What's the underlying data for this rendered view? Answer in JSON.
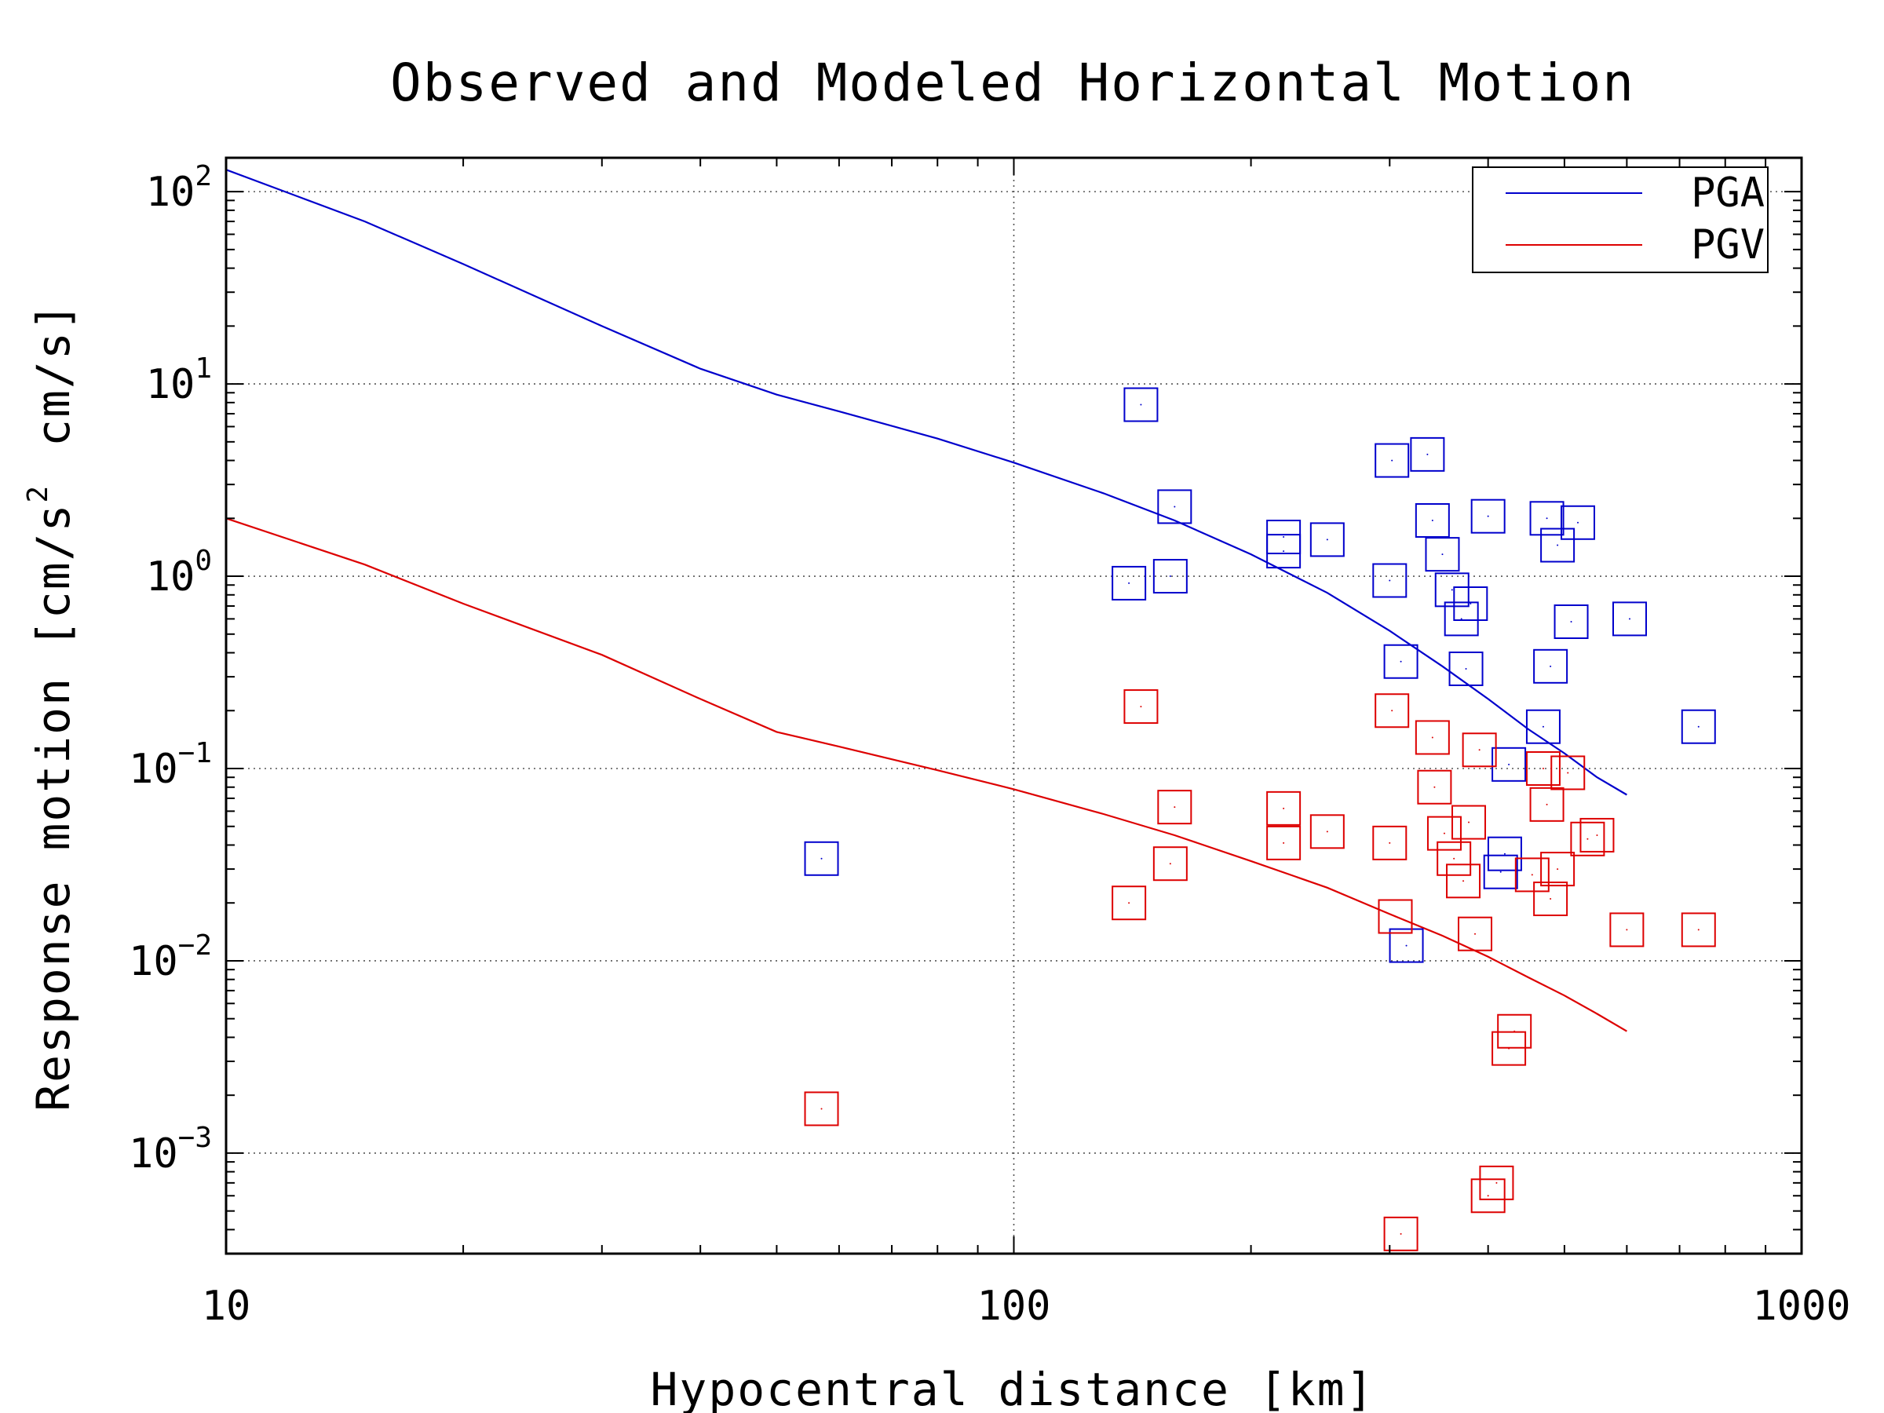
{
  "chart_data": {
    "type": "scatter",
    "title": "Observed and Modeled Horizontal Motion",
    "xlabel": "Hypocentral distance [km]",
    "ylabel": "Response motion [cm/s",
    "ylabel_sup": "2",
    "ylabel_tail": "cm/s]",
    "xscale": "log",
    "yscale": "log",
    "xlim": [
      10,
      1000
    ],
    "ylim": [
      0.0003,
      150
    ],
    "grid": true,
    "legend_position": "top-right",
    "x_ticks": [
      {
        "value": 10,
        "label": "10"
      },
      {
        "value": 100,
        "label": "100"
      },
      {
        "value": 1000,
        "label": "1000"
      }
    ],
    "y_ticks": [
      {
        "value": 100,
        "base": "10",
        "exp": "2"
      },
      {
        "value": 10,
        "base": "10",
        "exp": "1"
      },
      {
        "value": 1,
        "base": "10",
        "exp": "0"
      },
      {
        "value": 0.1,
        "base": "10",
        "exp": "−1"
      },
      {
        "value": 0.01,
        "base": "10",
        "exp": "−2"
      },
      {
        "value": 0.001,
        "base": "10",
        "exp": "−3"
      }
    ],
    "series": [
      {
        "name": "PGA",
        "kind": "line",
        "color": "#0000cc",
        "x": [
          10,
          15,
          20,
          30,
          40,
          50,
          60,
          80,
          100,
          130,
          160,
          200,
          250,
          300,
          350,
          400,
          450,
          500,
          550,
          600
        ],
        "y": [
          130,
          70,
          42,
          20,
          12,
          8.8,
          7.2,
          5.2,
          3.9,
          2.7,
          1.95,
          1.3,
          0.82,
          0.52,
          0.34,
          0.23,
          0.16,
          0.12,
          0.09,
          0.073
        ]
      },
      {
        "name": "PGV",
        "kind": "line",
        "color": "#dd0000",
        "x": [
          10,
          15,
          20,
          30,
          40,
          50,
          60,
          80,
          100,
          130,
          160,
          200,
          250,
          300,
          350,
          400,
          450,
          500,
          550,
          600
        ],
        "y": [
          2.0,
          1.15,
          0.72,
          0.39,
          0.23,
          0.155,
          0.13,
          0.098,
          0.078,
          0.058,
          0.045,
          0.033,
          0.024,
          0.0175,
          0.0135,
          0.0105,
          0.0082,
          0.0066,
          0.0053,
          0.0043
        ]
      },
      {
        "kind": "scatter",
        "marker": "square",
        "color": "#0000cc",
        "x": [
          57,
          145,
          140,
          158,
          160,
          220,
          220,
          250,
          300,
          302,
          310,
          315,
          335,
          340,
          350,
          360,
          370,
          375,
          380,
          400,
          415,
          420,
          425,
          470,
          475,
          480,
          490,
          510,
          520,
          605,
          740
        ],
        "y": [
          0.034,
          7.8,
          0.92,
          1.0,
          2.3,
          1.6,
          1.35,
          1.55,
          0.95,
          4.0,
          0.36,
          0.012,
          4.3,
          1.95,
          1.3,
          0.85,
          0.6,
          0.33,
          0.72,
          2.05,
          0.029,
          0.036,
          0.105,
          0.165,
          2.0,
          0.34,
          1.45,
          0.58,
          1.9,
          0.6,
          0.165
        ]
      },
      {
        "kind": "scatter",
        "marker": "square",
        "color": "#dd0000",
        "x": [
          57,
          140,
          145,
          158,
          160,
          220,
          220,
          250,
          300,
          302,
          305,
          310,
          340,
          342,
          352,
          362,
          372,
          378,
          385,
          390,
          400,
          410,
          425,
          432,
          455,
          470,
          475,
          480,
          490,
          505,
          535,
          550,
          600,
          740
        ],
        "y": [
          0.0017,
          0.02,
          0.21,
          0.032,
          0.063,
          0.062,
          0.041,
          0.047,
          0.041,
          0.2,
          0.017,
          0.00038,
          0.145,
          0.08,
          0.046,
          0.034,
          0.026,
          0.0525,
          0.0138,
          0.125,
          0.0006,
          0.0007,
          0.0035,
          0.0043,
          0.028,
          0.1,
          0.065,
          0.021,
          0.03,
          0.095,
          0.043,
          0.045,
          0.0145,
          0.0145
        ]
      }
    ]
  }
}
